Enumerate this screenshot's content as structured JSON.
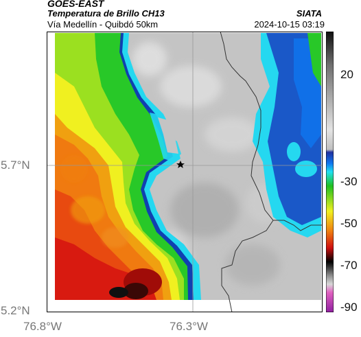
{
  "header": {
    "satellite": "GOES-EAST",
    "product": "Temperatura de Brillo CH13",
    "area": "Vía Medellín - Quibdó 50km",
    "organization": "SIATA",
    "timestamp": "2024-10-15 03:19"
  },
  "map": {
    "lat_ticks": [
      "5.7°N",
      "5.2°N"
    ],
    "lon_ticks": [
      "76.8°W",
      "76.3°W"
    ],
    "marker": "star-icon",
    "colors": {
      "cold_cloud_gray": "#c4c4c4",
      "cyan": "#25d8f0",
      "blue": "#1040b0",
      "green": "#28c828",
      "yellow": "#f0f020",
      "orange": "#f07a10",
      "red": "#d81a10",
      "black": "#101010",
      "boundary": "#333333"
    }
  },
  "colorbar": {
    "ticks": [
      "20",
      "-30",
      "-50",
      "-70",
      "-90"
    ],
    "stops": [
      "#101010",
      "#909090",
      "#e0e0e0",
      "#2030a0",
      "#1078f0",
      "#20e0f0",
      "#20c020",
      "#f0f020",
      "#f08010",
      "#d01010",
      "#000000",
      "#c0c0c0",
      "#d040c0"
    ]
  }
}
